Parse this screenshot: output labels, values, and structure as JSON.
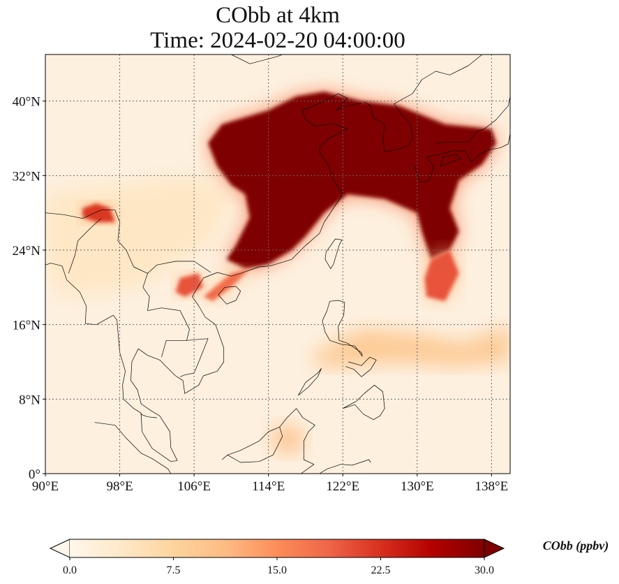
{
  "title": "CObb at 4km",
  "subtitle": "Time: 2024-02-20 04:00:00",
  "map": {
    "lon_range": [
      90,
      140
    ],
    "lat_range": [
      0,
      45
    ],
    "lon_ticks": [
      {
        "value": 90,
        "label": "90°E"
      },
      {
        "value": 98,
        "label": "98°E"
      },
      {
        "value": 106,
        "label": "106°E"
      },
      {
        "value": 114,
        "label": "114°E"
      },
      {
        "value": 122,
        "label": "122°E"
      },
      {
        "value": 130,
        "label": "130°E"
      },
      {
        "value": 138,
        "label": "138°E"
      }
    ],
    "lat_ticks": [
      {
        "value": 0,
        "label": "0°"
      },
      {
        "value": 8,
        "label": "8°N"
      },
      {
        "value": 16,
        "label": "16°N"
      },
      {
        "value": 24,
        "label": "24°N"
      },
      {
        "value": 32,
        "label": "32°N"
      },
      {
        "value": 40,
        "label": "40°N"
      }
    ],
    "gridlines": true,
    "colormap": "OrRd"
  },
  "colorbar": {
    "label": "CObb (ppbv)",
    "min": 0.0,
    "max": 30.0,
    "ticks": [
      "0.0",
      "7.5",
      "15.0",
      "22.5",
      "30.0"
    ],
    "extend": "both",
    "stops": [
      "#fff7ec",
      "#fee8c8",
      "#fdd49e",
      "#fdbb84",
      "#fc8d59",
      "#ef6548",
      "#d7301f",
      "#b30000",
      "#7f0000"
    ]
  },
  "plumes": [
    {
      "name": "main-east-asia-plume",
      "level": 30,
      "points": [
        [
          107.5,
          35.5
        ],
        [
          109,
          37.5
        ],
        [
          114,
          39
        ],
        [
          117,
          40.5
        ],
        [
          120,
          41
        ],
        [
          124,
          40
        ],
        [
          128,
          39.5
        ],
        [
          133,
          37.5
        ],
        [
          138,
          37
        ],
        [
          138.5,
          35.5
        ],
        [
          137,
          33.2
        ],
        [
          134.5,
          31.5
        ],
        [
          133.5,
          28.5
        ],
        [
          134.5,
          26
        ],
        [
          133.5,
          24
        ],
        [
          131.5,
          23
        ],
        [
          130.5,
          26
        ],
        [
          130,
          28
        ],
        [
          126.5,
          29.5
        ],
        [
          122.5,
          30
        ],
        [
          120,
          28
        ],
        [
          118,
          25.5
        ],
        [
          116.5,
          24
        ],
        [
          114,
          22.5
        ],
        [
          111.5,
          22
        ],
        [
          109.5,
          23
        ],
        [
          110.5,
          24.5
        ],
        [
          112,
          27.5
        ],
        [
          111.5,
          30
        ],
        [
          110,
          31
        ],
        [
          108.5,
          33
        ]
      ]
    },
    {
      "name": "southeast-tail",
      "level": 20,
      "points": [
        [
          131.5,
          23
        ],
        [
          133.5,
          24
        ],
        [
          134.5,
          21.5
        ],
        [
          133,
          18.5
        ],
        [
          131,
          19
        ],
        [
          130.8,
          21
        ]
      ]
    },
    {
      "name": "himalaya-hotspot",
      "level": 22,
      "points": [
        [
          94,
          28.5
        ],
        [
          95.5,
          29
        ],
        [
          97,
          28.5
        ],
        [
          97.5,
          27
        ],
        [
          95.5,
          27
        ],
        [
          94,
          27.5
        ]
      ]
    },
    {
      "name": "vietnam-hotspot",
      "level": 20,
      "points": [
        [
          104.5,
          21
        ],
        [
          106.5,
          21.5
        ],
        [
          107,
          20
        ],
        [
          105,
          19
        ],
        [
          104,
          19.5
        ]
      ]
    },
    {
      "name": "gulf-tonkin-band",
      "level": 18,
      "points": [
        [
          107,
          19
        ],
        [
          110,
          21.5
        ],
        [
          112,
          22
        ],
        [
          110,
          20
        ],
        [
          108,
          18.5
        ]
      ]
    },
    {
      "name": "philippines-band",
      "level": 9,
      "points": [
        [
          119,
          13
        ],
        [
          124,
          15.5
        ],
        [
          130,
          15
        ],
        [
          135,
          14
        ],
        [
          140,
          16
        ],
        [
          140,
          12
        ],
        [
          134,
          11.5
        ],
        [
          128,
          12
        ],
        [
          122,
          11.5
        ],
        [
          119,
          11.5
        ]
      ]
    },
    {
      "name": "borneo-hotspot",
      "level": 10,
      "points": [
        [
          114,
          4
        ],
        [
          116,
          5.5
        ],
        [
          118,
          4
        ],
        [
          117,
          2
        ],
        [
          115,
          2.5
        ]
      ]
    },
    {
      "name": "western-haze",
      "level": 4,
      "points": [
        [
          90,
          30
        ],
        [
          98,
          31
        ],
        [
          106,
          32
        ],
        [
          110,
          30
        ],
        [
          108,
          25
        ],
        [
          100,
          20
        ],
        [
          92,
          19
        ],
        [
          90,
          22
        ]
      ]
    }
  ]
}
